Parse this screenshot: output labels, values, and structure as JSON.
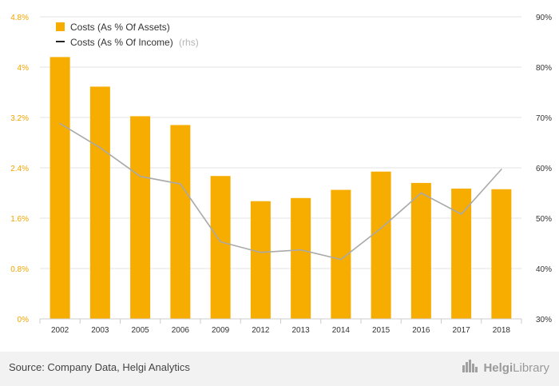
{
  "chart_data": {
    "type": "bar",
    "categories": [
      "2002",
      "2003",
      "2005",
      "2006",
      "2009",
      "2012",
      "2013",
      "2014",
      "2015",
      "2016",
      "2017",
      "2018"
    ],
    "series": [
      {
        "name": "Costs (As % Of Assets)",
        "kind": "bar",
        "axis": "left",
        "values": [
          4.16,
          3.69,
          3.22,
          3.08,
          2.27,
          1.87,
          1.92,
          2.05,
          2.34,
          2.16,
          2.07,
          2.06
        ]
      },
      {
        "name": "Costs (As % Of Income)",
        "axis_note": "(rhs)",
        "kind": "line",
        "axis": "right",
        "values": [
          68.8,
          64.0,
          58.3,
          56.8,
          45.3,
          43.2,
          43.7,
          41.8,
          48.0,
          55.0,
          50.8,
          59.7
        ]
      }
    ],
    "y_left": {
      "min": 0,
      "max": 4.8,
      "ticks": [
        "0%",
        "0.8%",
        "1.6%",
        "2.4%",
        "3.2%",
        "4%",
        "4.8%"
      ]
    },
    "y_right": {
      "min": 30,
      "max": 90,
      "ticks": [
        "30%",
        "40%",
        "50%",
        "60%",
        "70%",
        "80%",
        "90%"
      ]
    },
    "grid": true,
    "legend_position": "top-left",
    "colors": {
      "bar": "#f7ad00",
      "line": "#a9a9a9",
      "left_axis_text": "#f0a500",
      "right_axis_text": "#333333",
      "grid": "#e3e3e3"
    }
  },
  "footer": {
    "source": "Source: Company Data, Helgi Analytics",
    "brand_part_1": "Helgi",
    "brand_part_2": "Library",
    "brand_icon": "city-skyline-icon"
  }
}
